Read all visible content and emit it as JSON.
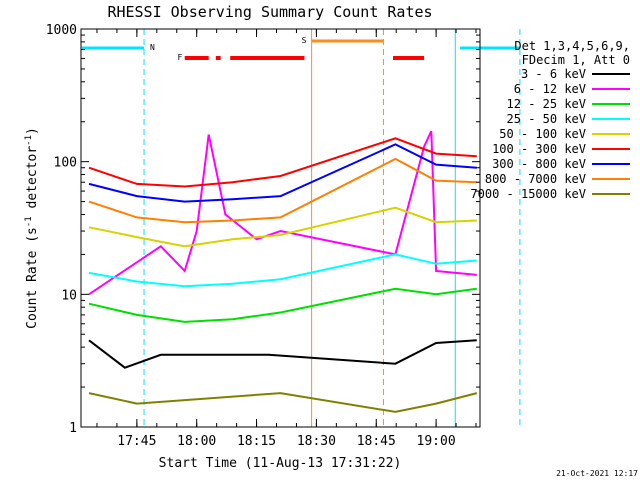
{
  "chart_data": {
    "type": "line",
    "title": "RHESSI Observing Summary Count Rates",
    "xlabel": "Start Time (11-Aug-13 17:31:22)",
    "ylabel_main": "Count Rate (s",
    "ylabel_sup1": "-1",
    "ylabel_mid": " detector",
    "ylabel_sup2": "-1",
    "ylabel_end": ")",
    "yscale": "log",
    "ylim": [
      1,
      1000
    ],
    "xlim": [
      "17:31",
      "19:11"
    ],
    "x_ticks": [
      "17:45",
      "18:00",
      "18:15",
      "18:30",
      "18:45",
      "19:00"
    ],
    "y_ticks": [
      "1",
      "10",
      "100",
      "1000"
    ],
    "legend_header": [
      "Det 1,3,4,5,6,9,",
      "FDecim 1, Att 0"
    ],
    "series": [
      {
        "name": "3 - 6 keV",
        "color": "#000000",
        "values": [
          [
            17.55,
            4.5
          ],
          [
            17.7,
            2.8
          ],
          [
            17.85,
            3.5
          ],
          [
            18.05,
            3.5
          ],
          [
            18.3,
            3.5
          ],
          [
            18.83,
            3.0
          ],
          [
            19.0,
            4.3
          ],
          [
            19.17,
            4.5
          ]
        ]
      },
      {
        "name": "6 - 12 keV",
        "color": "#ff00ff",
        "values": [
          [
            17.55,
            10
          ],
          [
            17.85,
            23
          ],
          [
            17.95,
            15
          ],
          [
            18.0,
            30
          ],
          [
            18.05,
            160
          ],
          [
            18.12,
            40
          ],
          [
            18.25,
            26
          ],
          [
            18.35,
            30
          ],
          [
            18.83,
            20
          ],
          [
            18.95,
            130
          ],
          [
            18.98,
            170
          ],
          [
            19.0,
            15
          ],
          [
            19.17,
            14
          ]
        ]
      },
      {
        "name": "12 - 25 keV",
        "color": "#00e000",
        "values": [
          [
            17.55,
            8.5
          ],
          [
            17.75,
            7.0
          ],
          [
            17.95,
            6.2
          ],
          [
            18.15,
            6.5
          ],
          [
            18.35,
            7.3
          ],
          [
            18.83,
            11
          ],
          [
            19.0,
            10
          ],
          [
            19.17,
            11
          ]
        ]
      },
      {
        "name": "25 - 50 keV",
        "color": "#00ffff",
        "values": [
          [
            17.55,
            14.5
          ],
          [
            17.75,
            12.5
          ],
          [
            17.95,
            11.5
          ],
          [
            18.15,
            12
          ],
          [
            18.35,
            13
          ],
          [
            18.83,
            20
          ],
          [
            19.0,
            17
          ],
          [
            19.17,
            18
          ]
        ]
      },
      {
        "name": "50 - 100 keV",
        "color": "#d4d400",
        "values": [
          [
            17.55,
            32
          ],
          [
            17.75,
            27
          ],
          [
            17.95,
            23
          ],
          [
            18.15,
            26
          ],
          [
            18.35,
            28
          ],
          [
            18.83,
            45
          ],
          [
            19.0,
            35
          ],
          [
            19.17,
            36
          ]
        ]
      },
      {
        "name": "100 - 300 keV",
        "color": "#ff0000",
        "values": [
          [
            17.55,
            90
          ],
          [
            17.75,
            68
          ],
          [
            17.95,
            65
          ],
          [
            18.15,
            70
          ],
          [
            18.35,
            78
          ],
          [
            18.83,
            150
          ],
          [
            19.0,
            115
          ],
          [
            19.17,
            110
          ]
        ]
      },
      {
        "name": "300 - 800 keV",
        "color": "#0000ff",
        "values": [
          [
            17.55,
            68
          ],
          [
            17.75,
            55
          ],
          [
            17.95,
            50
          ],
          [
            18.15,
            52
          ],
          [
            18.35,
            55
          ],
          [
            18.83,
            135
          ],
          [
            19.0,
            95
          ],
          [
            19.17,
            90
          ]
        ]
      },
      {
        "name": "800 - 7000 keV",
        "color": "#ff8000",
        "values": [
          [
            17.55,
            50
          ],
          [
            17.75,
            38
          ],
          [
            17.95,
            35
          ],
          [
            18.15,
            36
          ],
          [
            18.35,
            38
          ],
          [
            18.83,
            105
          ],
          [
            19.0,
            72
          ],
          [
            19.17,
            70
          ]
        ]
      },
      {
        "name": "7000 - 15000 keV",
        "color": "#808000",
        "values": [
          [
            17.55,
            1.8
          ],
          [
            17.75,
            1.5
          ],
          [
            18.35,
            1.8
          ],
          [
            18.83,
            1.3
          ],
          [
            19.0,
            1.5
          ],
          [
            19.17,
            1.8
          ]
        ]
      }
    ],
    "annotations": {
      "night_label": "N",
      "flare_label": "F",
      "saa_label": "S"
    },
    "grid": false,
    "legend_position": "right"
  },
  "footer_date": "21-Oct-2021 12:17"
}
